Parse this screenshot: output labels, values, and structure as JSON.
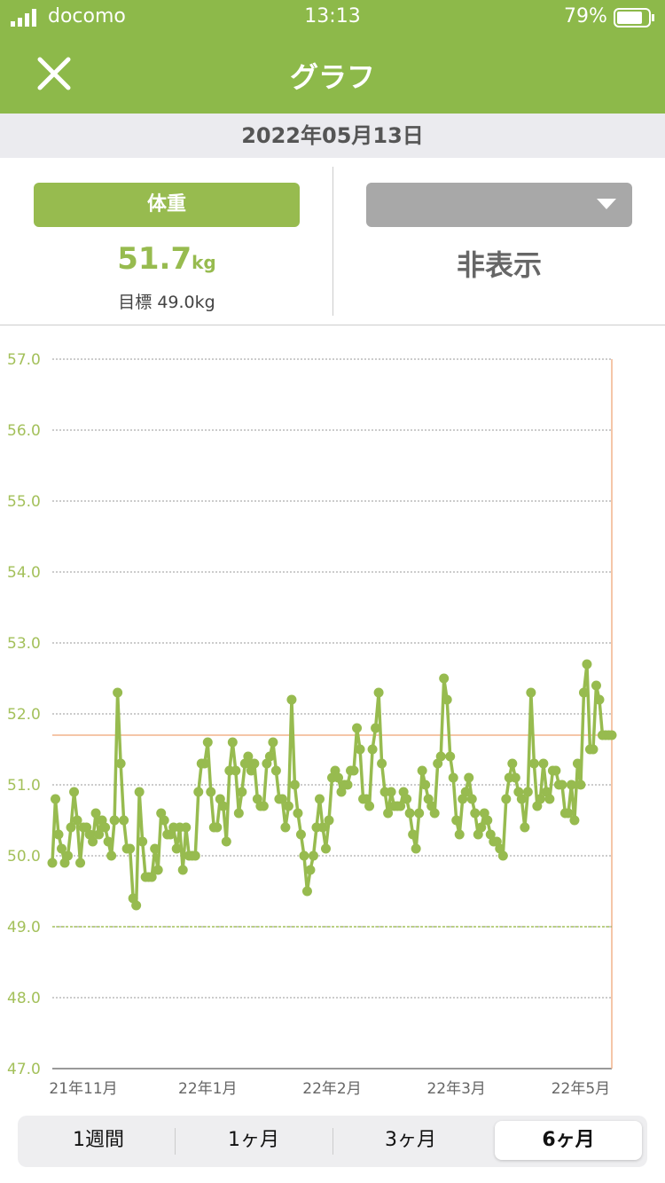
{
  "status_bar": {
    "carrier": "docomo",
    "time": "13:13",
    "battery": "79%"
  },
  "header": {
    "title": "グラフ"
  },
  "date": "2022年05月13日",
  "summary": {
    "metric": "体重",
    "value": "51.7",
    "unit": "kg",
    "goal": "目標 49.0kg",
    "second_metric": "非表示"
  },
  "segments": [
    "1週間",
    "1ヶ月",
    "3ヶ月",
    "6ヶ月"
  ],
  "chart_data": {
    "type": "line",
    "color": "#97bb4f",
    "values": [
      49.9,
      50.8,
      50.3,
      50.1,
      49.9,
      50.0,
      50.4,
      50.9,
      50.5,
      49.9,
      50.4,
      50.4,
      50.3,
      50.2,
      50.6,
      50.3,
      50.5,
      50.4,
      50.2,
      50.0,
      50.5,
      52.3,
      51.3,
      50.5,
      50.1,
      50.1,
      49.4,
      49.3,
      50.9,
      50.2,
      49.7,
      49.7,
      49.7,
      50.1,
      49.8,
      50.6,
      50.5,
      50.3,
      50.3,
      50.4,
      50.1,
      50.4,
      49.8,
      50.4,
      50.0,
      50.0,
      50.0,
      50.9,
      51.3,
      51.3,
      51.6,
      50.9,
      50.4,
      50.4,
      50.8,
      50.7,
      50.2,
      51.2,
      51.6,
      51.2,
      50.6,
      50.9,
      51.3,
      51.4,
      51.2,
      51.3,
      50.8,
      50.7,
      50.7,
      51.3,
      51.4,
      51.6,
      51.2,
      50.8,
      50.8,
      50.4,
      50.7,
      52.2,
      51.0,
      50.6,
      50.3,
      50.0,
      49.5,
      49.8,
      50.0,
      50.4,
      50.8,
      50.4,
      50.1,
      50.5,
      51.1,
      51.2,
      51.1,
      50.9,
      51.0,
      51.0,
      51.2,
      51.2,
      51.8,
      51.5,
      50.8,
      50.8,
      50.7,
      51.5,
      51.8,
      52.3,
      51.3,
      50.9,
      50.6,
      50.9,
      50.7,
      50.7,
      50.7,
      50.9,
      50.8,
      50.6,
      50.3,
      50.1,
      50.6,
      51.2,
      51.0,
      50.8,
      50.7,
      50.6,
      51.3,
      51.4,
      52.5,
      52.2,
      51.4,
      51.1,
      50.5,
      50.3,
      50.8,
      50.9,
      51.1,
      50.8,
      50.6,
      50.3,
      50.4,
      50.6,
      50.5,
      50.3,
      50.2,
      50.2,
      50.1,
      50.0,
      50.8,
      51.1,
      51.3,
      51.1,
      50.9,
      50.8,
      50.4,
      50.9,
      52.3,
      51.3,
      50.7,
      50.8,
      51.3,
      50.9,
      50.8,
      51.2,
      51.2,
      51.0,
      51.0,
      50.6,
      50.6,
      51.0,
      50.5,
      51.3,
      51.0,
      52.3,
      52.7,
      51.5,
      51.5,
      52.4,
      52.2,
      51.7,
      51.7,
      51.7,
      51.7
    ],
    "xlim": [
      0,
      180
    ],
    "xticks": [
      {
        "value": 10,
        "label": "21年11月"
      },
      {
        "value": 50,
        "label": "22年1月"
      },
      {
        "value": 90,
        "label": "22年2月"
      },
      {
        "value": 130,
        "label": "22年3月"
      },
      {
        "value": 170,
        "label": "22年5月"
      }
    ],
    "ylim": [
      47,
      57
    ],
    "yticks": [
      {
        "value": 47,
        "label": "47.0"
      },
      {
        "value": 48,
        "label": "48.0"
      },
      {
        "value": 49,
        "label": "49.0"
      },
      {
        "value": 50,
        "label": "50.0"
      },
      {
        "value": 51,
        "label": "51.0"
      },
      {
        "value": 52,
        "label": "52.0"
      },
      {
        "value": 53,
        "label": "53.0"
      },
      {
        "value": 54,
        "label": "54.0"
      },
      {
        "value": 55,
        "label": "55.0"
      },
      {
        "value": 56,
        "label": "56.0"
      },
      {
        "value": 57,
        "label": "57.0"
      }
    ],
    "grid": true,
    "reference_lines": [
      {
        "value": 51.7,
        "color": "#f2b48c"
      },
      {
        "value": 49,
        "color": "#a3c05a"
      }
    ]
  }
}
